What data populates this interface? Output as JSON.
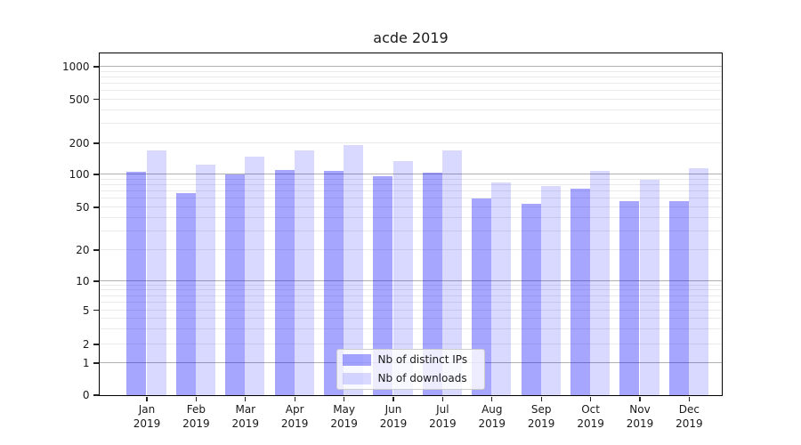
{
  "figure": {
    "background": "#ffffff"
  },
  "chart_data": {
    "type": "bar",
    "title": "acde 2019",
    "xlabel": "",
    "ylabel": "",
    "yscale": "symlog",
    "yticks": [
      0,
      1,
      2,
      5,
      10,
      20,
      50,
      100,
      200,
      500,
      1000
    ],
    "ylim": [
      0,
      1330
    ],
    "grid": "horizontal major and minor gridlines",
    "legend_position": "lower center",
    "categories": [
      {
        "month": "Jan",
        "year": "2019"
      },
      {
        "month": "Feb",
        "year": "2019"
      },
      {
        "month": "Mar",
        "year": "2019"
      },
      {
        "month": "Apr",
        "year": "2019"
      },
      {
        "month": "May",
        "year": "2019"
      },
      {
        "month": "Jun",
        "year": "2019"
      },
      {
        "month": "Jul",
        "year": "2019"
      },
      {
        "month": "Aug",
        "year": "2019"
      },
      {
        "month": "Sep",
        "year": "2019"
      },
      {
        "month": "Oct",
        "year": "2019"
      },
      {
        "month": "Nov",
        "year": "2019"
      },
      {
        "month": "Dec",
        "year": "2019"
      }
    ],
    "series": [
      {
        "name": "Nb of distinct IPs",
        "color": "rgba(0,0,255,0.35)",
        "values": [
          105,
          67,
          100,
          110,
          107,
          96,
          103,
          60,
          53,
          73,
          56,
          57
        ]
      },
      {
        "name": "Nb of downloads",
        "color": "rgba(0,0,255,0.15)",
        "values": [
          170,
          122,
          148,
          168,
          190,
          133,
          168,
          84,
          77,
          108,
          88,
          114
        ]
      }
    ]
  },
  "colors": {
    "major_grid": "#b0b0b0",
    "minor_grid": "#eaeaea",
    "spine": "#000000",
    "text": "#1a1a1a",
    "legend_border": "#cccccc"
  }
}
